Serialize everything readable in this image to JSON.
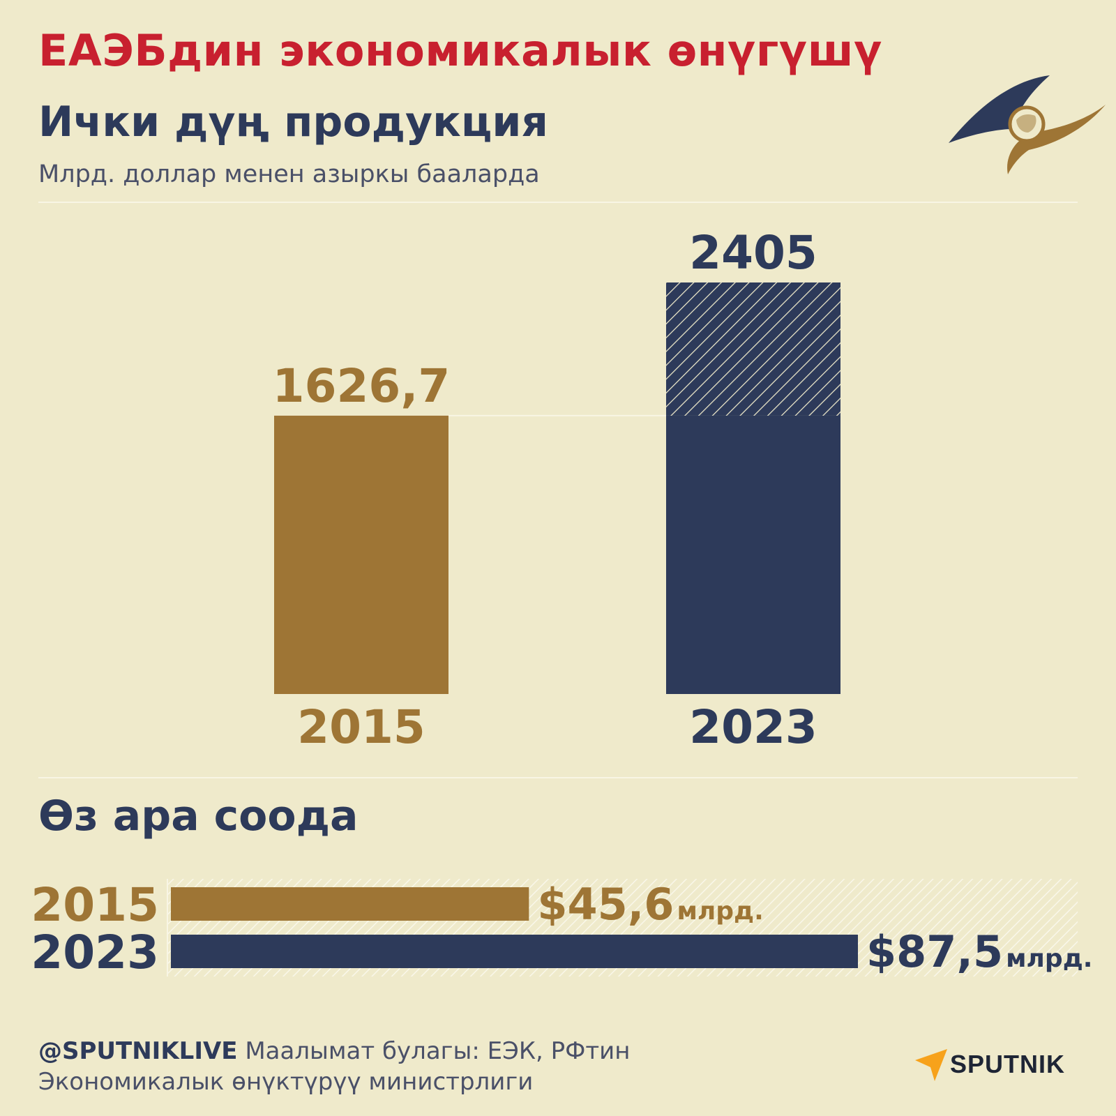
{
  "header": {
    "title": "ЕАЭБдин экономикалык өнүгүшү",
    "subtitle": "Ички дүң продукция",
    "unit_note": "Млрд. доллар менен азыркы бааларда"
  },
  "colors": {
    "gold": "#9e7535",
    "navy": "#2d3a5a",
    "title_red": "#c8202f",
    "background": "#efeacb"
  },
  "chart_data": [
    {
      "type": "bar",
      "title": "Ички дүң продукция",
      "ylabel": "Млрд. доллар менен азыркы бааларда",
      "categories": [
        "2015",
        "2023"
      ],
      "values": [
        1626.7,
        2405
      ],
      "value_labels": [
        "1626,7",
        "2405"
      ],
      "colors": [
        "#9e7535",
        "#2d3a5a"
      ],
      "increase_hatched_above": 1626.7,
      "ylim": [
        0,
        2405
      ],
      "grid": false,
      "legend": "none"
    },
    {
      "type": "bar",
      "orientation": "horizontal",
      "title": "Өз ара соода",
      "categories": [
        "2015",
        "2023"
      ],
      "values": [
        45.6,
        87.5
      ],
      "value_labels": [
        "$45,6",
        "$87,5"
      ],
      "value_unit": "млрд.",
      "colors": [
        "#9e7535",
        "#2d3a5a"
      ],
      "xlim": [
        0,
        87.5
      ],
      "grid": false,
      "legend": "none"
    }
  ],
  "footer": {
    "handle": "@SPUTNIKLIVE",
    "source_line1": " Маалымат булагы: ЕЭК, РФтин",
    "source_line2": "Экономикалык өнүктүрүү министрлиги"
  },
  "brand": {
    "name": "SPUTNIK",
    "logo_icon": "sputnik-logo-icon",
    "eaeu_icon": "eaeu-emblem-icon"
  }
}
